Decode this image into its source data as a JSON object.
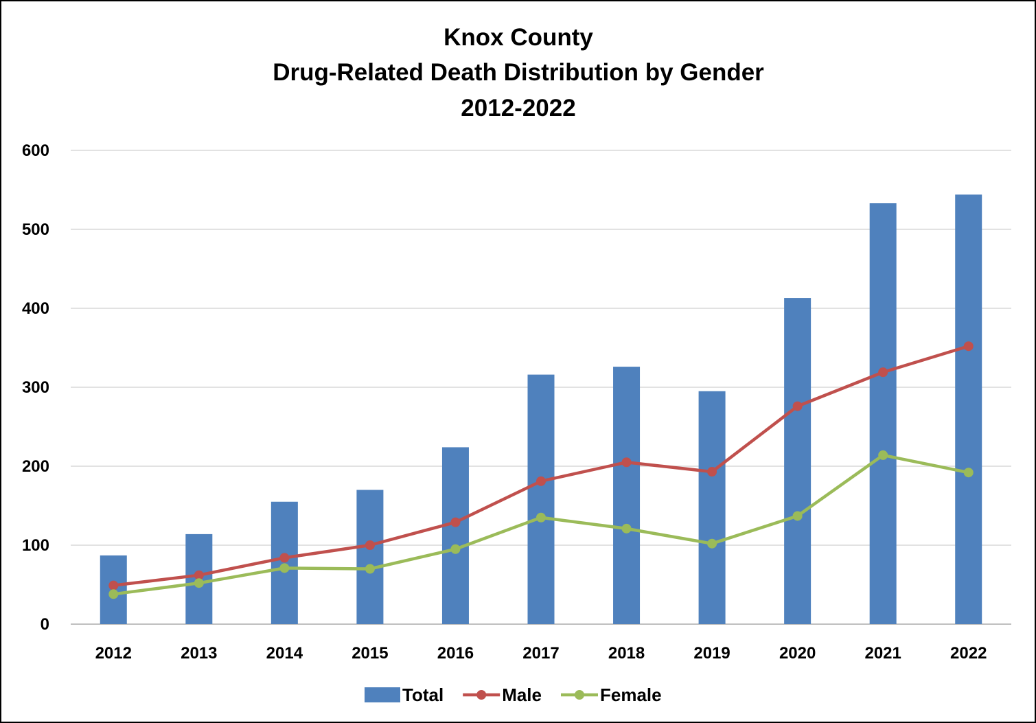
{
  "chart_data": {
    "type": "bar",
    "title_lines": [
      "Knox County",
      "Drug-Related Death Distribution by Gender",
      "2012-2022"
    ],
    "categories": [
      "2012",
      "2013",
      "2014",
      "2015",
      "2016",
      "2017",
      "2018",
      "2019",
      "2020",
      "2021",
      "2022"
    ],
    "series": [
      {
        "name": "Total",
        "type": "bar",
        "color": "#4F81BD",
        "values": [
          87,
          114,
          155,
          170,
          224,
          316,
          326,
          295,
          413,
          533,
          544
        ]
      },
      {
        "name": "Male",
        "type": "line",
        "color": "#C0504D",
        "values": [
          49,
          62,
          84,
          100,
          129,
          181,
          205,
          193,
          276,
          319,
          352
        ]
      },
      {
        "name": "Female",
        "type": "line",
        "color": "#9BBB59",
        "values": [
          38,
          52,
          71,
          70,
          95,
          135,
          121,
          102,
          137,
          214,
          192
        ]
      }
    ],
    "y_ticks": [
      "0",
      "100",
      "200",
      "300",
      "400",
      "500",
      "600"
    ],
    "ylim": [
      0,
      600
    ],
    "grid": true,
    "legend_position": "bottom"
  }
}
